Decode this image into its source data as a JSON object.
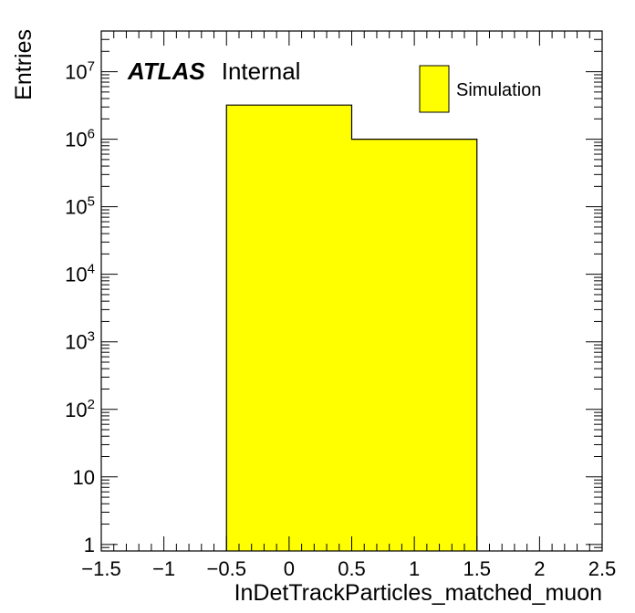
{
  "chart_data": {
    "type": "bar",
    "histogram": true,
    "xlabel": "InDetTrackParticles_matched_muon",
    "ylabel": "Entries",
    "xlim": [
      -1.5,
      2.5
    ],
    "ylim": [
      0.8,
      40000000
    ],
    "yscale": "log",
    "bins": [
      {
        "low": -0.5,
        "high": 0.5,
        "value": 3200000
      },
      {
        "low": 0.5,
        "high": 1.5,
        "value": 1000000
      }
    ],
    "fill_color": "#ffff00",
    "x_ticks": [
      {
        "value": -1.5,
        "label": "−1.5"
      },
      {
        "value": -1,
        "label": "−1"
      },
      {
        "value": -0.5,
        "label": "−0.5"
      },
      {
        "value": 0,
        "label": "0"
      },
      {
        "value": 0.5,
        "label": "0.5"
      },
      {
        "value": 1,
        "label": "1"
      },
      {
        "value": 1.5,
        "label": "1.5"
      },
      {
        "value": 2,
        "label": "2"
      },
      {
        "value": 2.5,
        "label": "2.5"
      }
    ],
    "y_ticks": [
      {
        "value": 1,
        "base": "1",
        "exp": ""
      },
      {
        "value": 10,
        "base": "10",
        "exp": ""
      },
      {
        "value": 100,
        "base": "10",
        "exp": "2"
      },
      {
        "value": 1000,
        "base": "10",
        "exp": "3"
      },
      {
        "value": 10000,
        "base": "10",
        "exp": "4"
      },
      {
        "value": 100000,
        "base": "10",
        "exp": "5"
      },
      {
        "value": 1000000,
        "base": "10",
        "exp": "6"
      },
      {
        "value": 10000000,
        "base": "10",
        "exp": "7"
      }
    ],
    "legend": {
      "placement": "top-right",
      "entries": [
        {
          "label": "Simulation",
          "color": "#ffff00"
        }
      ]
    },
    "grid": false
  },
  "atlas_label": {
    "bold": "ATLAS",
    "normal": "Internal"
  }
}
